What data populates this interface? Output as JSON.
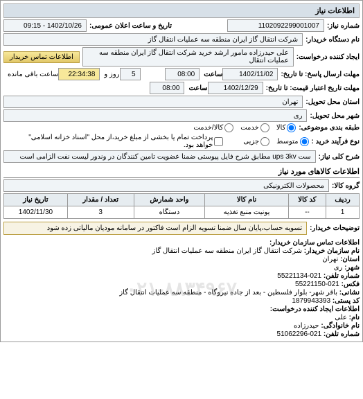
{
  "sectionTitle": "اطلاعات نياز",
  "fields": {
    "requestNumber": {
      "label": "شماره نياز:",
      "value": "1102092299001007"
    },
    "announceDateTime": {
      "label": "تاريخ و ساعت اعلان عمومی:",
      "value": "1402/10/26 - 09:15"
    },
    "buyerDeviceName": {
      "label": "نام دستگاه خريدار:",
      "value": "شركت انتقال گاز ايران منطقه سه عمليات انتقال گاز"
    },
    "requestCreator": {
      "label": "ايجاد كننده درخواست:",
      "value": "علی حيدرزاده مامور ارشد خريد شركت انتقال گاز ايران منطقه سه عمليات انتقال"
    },
    "buyerContactBtn": "اطلاعات تماس خريدار",
    "responseDeadline": {
      "label": "مهلت ارسال پاسخ: تا تاريخ:",
      "date": "1402/11/02",
      "timeLabel": "ساعت",
      "time": "08:00"
    },
    "remaining": {
      "days": "5",
      "daysLabel": "روز و",
      "clock": "22:34:38",
      "clockLabel": "ساعت باقی مانده"
    },
    "validityDeadline": {
      "label": "مهلت تاريخ اعتبار قيمت: تا تاريخ:",
      "date": "1402/12/29",
      "timeLabel": "ساعت",
      "time": "08:00"
    },
    "provinceLabel": "استان محل تحويل:",
    "province": "تهران",
    "cityLabel": "شهر محل تحويل:",
    "city": "ری",
    "groupLabel": "طبقه بندی موضوعی:",
    "groupOptions": [
      "كالا",
      "خدمت",
      "كالا/خدمت"
    ],
    "groupSelectedIndex": 0,
    "buyTypeLabel": "نوع فرآيند خريد :",
    "buyOptions": [
      "متوسط",
      "جزيی"
    ],
    "buySelectedIndex": 0,
    "paymentNote": "پرداخت تمام يا بخشی از مبلغ خريد،از محل \"اسناد خزانه اسلامی\" خواهد بود.",
    "overallDesc": {
      "label": "شرح كلی نياز:",
      "value": "ست ups 3kv مطابق شرح فايل پيوستی ضمنا عضويت تامين كنندگان در وندور ليست نفت الزامی است"
    },
    "itemsTitle": "اطلاعات كالاهای مورد نياز",
    "itemGroupLabel": "گروه كالا:",
    "itemGroup": "محصولات الكترونيكی"
  },
  "table": {
    "headers": [
      "رديف",
      "كد كالا",
      "نام كالا",
      "واحد شمارش",
      "تعداد / مقدار",
      "تاريخ نياز"
    ],
    "rows": [
      [
        "1",
        "--",
        "يونيت منبع تغذيه",
        "دستگاه",
        "3",
        "1402/11/30"
      ]
    ]
  },
  "buyerNote": {
    "label": "توضيحات خريدار:",
    "value": "تسويه حساب،پايان سال ضمنا تسويه الزام است فاكتور در سامانه موديان مالياتی زده شود"
  },
  "contactTitle": "اطلاعات تماس سازمان خريدار:",
  "contact": {
    "orgNameLabel": "نام سازمان خريدار:",
    "orgName": "شركت انتقال گاز ايران منطقه سه عمليات انتقال گاز",
    "provinceLabel": "استان:",
    "province": "تهران",
    "cityLabel": "شهر:",
    "city": "ری",
    "phoneLabel": "شماره تلفن:",
    "phone": "021-55221134",
    "faxLabel": "فكس:",
    "fax": "021-55221150",
    "addressLabel": "نشانی:",
    "address": "باقر شهر- بلوار فلسطين - بعد از جاده نيروگاه - منطقه سه عمليات انتقال گاز",
    "postalLabel": "كد پستی:",
    "postal": "1879943393",
    "creatorTitle": "اطلاعات ايجاد كننده درخواست:",
    "firstNameLabel": "نام:",
    "firstName": "علی",
    "lastNameLabel": "نام خانوادگی:",
    "lastName": "حيدرزاده",
    "contactPhoneLabel": "شماره تلفن:",
    "contactPhone": "021-51062296"
  },
  "watermark": "۰۲۱-۸۸۳۴۹۶۷",
  "colors": {
    "sectionBg": "#d7e0e8",
    "valueBg": "#f0f4f7",
    "noteBg": "#f7f3e4",
    "borderColor": "#999999"
  }
}
